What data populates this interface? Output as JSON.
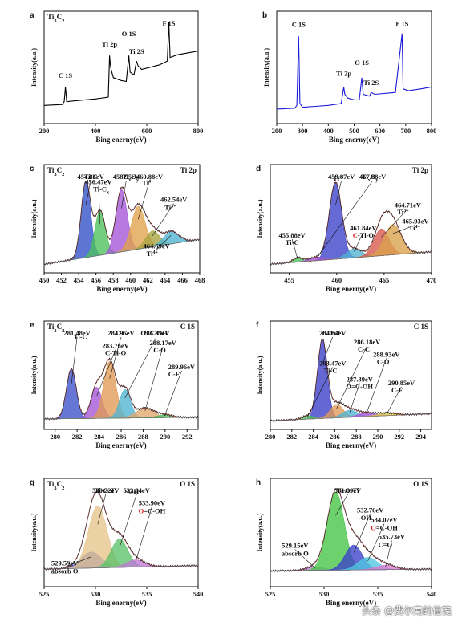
{
  "watermark": "头条 @费尔南的信笺",
  "chart_data": [
    {
      "id": "a",
      "type": "line",
      "letter": "a",
      "title": "Ti3C2",
      "xlabel": "Bing enerny(eV)",
      "ylabel": "Intensity(a.u.)",
      "xlim": [
        200,
        800
      ],
      "ylim": [
        0,
        100
      ],
      "xticks": [
        200,
        400,
        600,
        800
      ],
      "series": [
        {
          "color": "#000000",
          "points": [
            [
              200,
              10
            ],
            [
              270,
              11
            ],
            [
              278,
              14
            ],
            [
              283,
              30
            ],
            [
              288,
              14
            ],
            [
              320,
              15
            ],
            [
              400,
              17
            ],
            [
              450,
              19
            ],
            [
              455,
              64
            ],
            [
              458,
              54
            ],
            [
              462,
              48
            ],
            [
              470,
              40
            ],
            [
              500,
              37
            ],
            [
              520,
              36
            ],
            [
              530,
              64
            ],
            [
              535,
              46
            ],
            [
              550,
              43
            ],
            [
              560,
              58
            ],
            [
              566,
              53
            ],
            [
              580,
              49
            ],
            [
              650,
              54
            ],
            [
              680,
              58
            ],
            [
              686,
              100
            ],
            [
              691,
              62
            ],
            [
              720,
              65
            ],
            [
              760,
              67
            ],
            [
              800,
              69
            ]
          ]
        }
      ],
      "labels": [
        {
          "text": "C 1S",
          "x": 283,
          "y": 40
        },
        {
          "text": "Ti 2p",
          "x": 455,
          "y": 74
        },
        {
          "text": "O 1S",
          "x": 530,
          "y": 85
        },
        {
          "text": "Ti 2S",
          "x": 560,
          "y": 66
        },
        {
          "text": "F 1S",
          "x": 686,
          "y": 110
        }
      ]
    },
    {
      "id": "b",
      "type": "line",
      "letter": "b",
      "title": "",
      "xlabel": "Bing enerny(eV)",
      "ylabel": "Intensity(a.u.)",
      "xlim": [
        200,
        800
      ],
      "ylim": [
        0,
        100
      ],
      "xticks": [
        200,
        300,
        400,
        500,
        600,
        700,
        800
      ],
      "series": [
        {
          "color": "#1a1ad9",
          "points": [
            [
              200,
              6
            ],
            [
              270,
              7
            ],
            [
              278,
              10
            ],
            [
              285,
              85
            ],
            [
              290,
              12
            ],
            [
              300,
              8
            ],
            [
              350,
              9
            ],
            [
              400,
              10
            ],
            [
              450,
              12
            ],
            [
              460,
              30
            ],
            [
              464,
              22
            ],
            [
              475,
              18
            ],
            [
              500,
              16
            ],
            [
              520,
              16
            ],
            [
              530,
              40
            ],
            [
              535,
              22
            ],
            [
              560,
              20
            ],
            [
              566,
              24
            ],
            [
              580,
              22
            ],
            [
              660,
              24
            ],
            [
              686,
              88
            ],
            [
              690,
              28
            ],
            [
              710,
              26
            ],
            [
              760,
              28
            ],
            [
              800,
              30
            ]
          ]
        }
      ],
      "labels": [
        {
          "text": "C 1S",
          "x": 285,
          "y": 95
        },
        {
          "text": "Ti 2p",
          "x": 460,
          "y": 42
        },
        {
          "text": "O 1S",
          "x": 530,
          "y": 54
        },
        {
          "text": "Ti 2S",
          "x": 566,
          "y": 32
        },
        {
          "text": "F 1S",
          "x": 686,
          "y": 96
        }
      ]
    },
    {
      "id": "c",
      "type": "area",
      "letter": "c",
      "title": "Ti3C2",
      "subtitle": "Ti 2p",
      "xlabel": "Bing enerny(eV)",
      "ylabel": "Intensity(a.u.)",
      "xlim": [
        450,
        468
      ],
      "ylim": [
        0,
        100
      ],
      "xticks": [
        450,
        452,
        454,
        456,
        458,
        460,
        462,
        464,
        466,
        468
      ],
      "baseline": [
        [
          450,
          0
        ],
        [
          468,
          28
        ]
      ],
      "peaks": [
        {
          "center": 454.83,
          "amp": 85,
          "width": 0.55,
          "color": "#3050c8"
        },
        {
          "center": 456.47,
          "amp": 50,
          "width": 0.6,
          "color": "#4cc25a"
        },
        {
          "center": 458.95,
          "amp": 70,
          "width": 0.65,
          "color": "#a455d6"
        },
        {
          "center": 460.88,
          "amp": 48,
          "width": 0.8,
          "color": "#e0a24a"
        },
        {
          "center": 462.54,
          "amp": 18,
          "width": 0.8,
          "color": "#a8a440"
        },
        {
          "center": 464.69,
          "amp": 14,
          "width": 0.9,
          "color": "#4fb3d1"
        }
      ],
      "labels": [
        {
          "text": "454.83eV",
          "x": 455.4,
          "y": 108,
          "peak": 454.83
        },
        {
          "text": "Ti-C",
          "x": 455.4,
          "y": 100
        },
        {
          "text": "456.47eV",
          "x": 456.3,
          "y": 90,
          "peak": 456.47
        },
        {
          "text": "Ti-Cx",
          "x": 456.6,
          "y": 82
        },
        {
          "text": "458.95eV",
          "x": 459.5,
          "y": 108,
          "peak": 458.95
        },
        {
          "text": "TixOy",
          "x": 460.0,
          "y": 100
        },
        {
          "text": "460.88eV",
          "x": 462.2,
          "y": 97,
          "peak": 460.88
        },
        {
          "text": "Ti4+",
          "x": 462.0,
          "y": 89
        },
        {
          "text": "462.54eV",
          "x": 465.0,
          "y": 70,
          "peak": 462.54
        },
        {
          "text": "Ti3+",
          "x": 464.6,
          "y": 61
        },
        {
          "text": "464.69eV",
          "x": 463.0,
          "y": 18,
          "peak": 464.69
        },
        {
          "text": "Ti4+",
          "x": 462.5,
          "y": 9
        }
      ]
    },
    {
      "id": "d",
      "type": "area",
      "letter": "d",
      "title": "",
      "subtitle": "Ti 2p",
      "xlabel": "Bing enerny(eV)",
      "ylabel": "Intensity(a.u.)",
      "xlim": [
        453,
        470
      ],
      "ylim": [
        0,
        100
      ],
      "xticks": [
        455,
        460,
        465,
        470
      ],
      "baseline": [
        [
          453,
          0
        ],
        [
          470,
          14
        ]
      ],
      "peaks": [
        {
          "center": 455.88,
          "amp": 5,
          "width": 0.5,
          "color": "#4cc25a"
        },
        {
          "center": 459.87,
          "amp": 86,
          "width": 0.65,
          "color": "#3a40c8"
        },
        {
          "center": 457.88,
          "amp": 4,
          "width": 0.8,
          "color": "#a455d6"
        },
        {
          "center": 461.84,
          "amp": 10,
          "width": 0.8,
          "color": "#4fb3d1"
        },
        {
          "center": 464.71,
          "amp": 30,
          "width": 0.8,
          "color": "#d9574a"
        },
        {
          "center": 465.93,
          "amp": 34,
          "width": 0.9,
          "color": "#d9a24a"
        }
      ],
      "labels": [
        {
          "text": "459.87eV",
          "x": 460.5,
          "y": 104,
          "peak": 459.87
        },
        {
          "text": "Ti4+",
          "x": 460.2,
          "y": 94
        },
        {
          "text": "457.88eV",
          "x": 463.8,
          "y": 104,
          "peak": 457.88
        },
        {
          "text": "TixOy",
          "x": 463.5,
          "y": 96
        },
        {
          "text": "455.88eV",
          "x": 455.3,
          "y": 30,
          "peak": 455.88
        },
        {
          "text": "Ti-C",
          "x": 455.3,
          "y": 22
        },
        {
          "text": "461.84eV",
          "x": 462.8,
          "y": 38,
          "peak": 461.84
        },
        {
          "text": "C-Ti-O",
          "x": 462.8,
          "y": 30,
          "red": "C"
        },
        {
          "text": "464.71eV",
          "x": 467.5,
          "y": 64,
          "peak": 464.71
        },
        {
          "text": "Ti3+",
          "x": 467.0,
          "y": 56
        },
        {
          "text": "465.93eV",
          "x": 468.5,
          "y": 46,
          "peak": 465.93
        },
        {
          "text": "Ti4+",
          "x": 468.2,
          "y": 38
        }
      ]
    },
    {
      "id": "e",
      "type": "area",
      "letter": "e",
      "title": "Ti3C2",
      "subtitle": "C 1S",
      "xlabel": "Bing enerny(eV)",
      "ylabel": "Intensity(a.u.)",
      "xlim": [
        279,
        293
      ],
      "ylim": [
        0,
        100
      ],
      "xticks": [
        280,
        282,
        284,
        286,
        288,
        290,
        292
      ],
      "baseline": [
        [
          279,
          2
        ],
        [
          293,
          4
        ]
      ],
      "peaks": [
        {
          "center": 281.48,
          "amp": 56,
          "width": 0.45,
          "color": "#3a50c8"
        },
        {
          "center": 283.76,
          "amp": 35,
          "width": 0.5,
          "color": "#a455d6"
        },
        {
          "center": 284.96,
          "amp": 64,
          "width": 0.55,
          "color": "#e09a55"
        },
        {
          "center": 286.35,
          "amp": 32,
          "width": 0.5,
          "color": "#4fb3d1"
        },
        {
          "center": 288.17,
          "amp": 11,
          "width": 0.8,
          "color": "#e2a870"
        },
        {
          "center": 289.96,
          "amp": 3,
          "width": 0.7,
          "color": "#4cc25a"
        }
      ],
      "labels": [
        {
          "text": "281.48eV",
          "x": 282.0,
          "y": 100,
          "peak": 281.48
        },
        {
          "text": "Ti-C",
          "x": 282.3,
          "y": 92
        },
        {
          "text": "284.96eV",
          "x": 286.0,
          "y": 104,
          "peak": 284.96
        },
        {
          "text": "C-C",
          "x": 286.0,
          "y": 96
        },
        {
          "text": "283.76eV",
          "x": 285.5,
          "y": 82,
          "peak": 283.76
        },
        {
          "text": "C-Ti-O",
          "x": 285.5,
          "y": 74
        },
        {
          "text": "286.35eV",
          "x": 289.2,
          "y": 104,
          "peak": 286.35
        },
        {
          "text": "O=C-OH",
          "x": 289.0,
          "y": 96
        },
        {
          "text": "288.17eV",
          "x": 289.8,
          "y": 85,
          "peak": 288.17
        },
        {
          "text": "C-O",
          "x": 289.5,
          "y": 77
        },
        {
          "text": "289.96eV",
          "x": 291.5,
          "y": 58,
          "peak": 289.96
        },
        {
          "text": "C-F",
          "x": 290.8,
          "y": 50
        }
      ]
    },
    {
      "id": "f",
      "type": "area",
      "letter": "f",
      "title": "",
      "subtitle": "C 1S",
      "xlabel": "Bing enerny(eV)",
      "ylabel": "Intensity(a.u.)",
      "xlim": [
        280,
        295
      ],
      "ylim": [
        0,
        100
      ],
      "xticks": [
        280,
        282,
        284,
        286,
        288,
        290,
        292,
        294
      ],
      "baseline": [
        [
          280,
          0
        ],
        [
          295,
          8
        ]
      ],
      "peaks": [
        {
          "center": 284.84,
          "amp": 88,
          "width": 0.45,
          "color": "#3a3ec8"
        },
        {
          "center": 283.47,
          "amp": 4,
          "width": 0.5,
          "color": "#4cc25a"
        },
        {
          "center": 286.18,
          "amp": 15,
          "width": 0.6,
          "color": "#e09a55"
        },
        {
          "center": 287.39,
          "amp": 8,
          "width": 0.7,
          "color": "#4fb3d1"
        },
        {
          "center": 288.93,
          "amp": 4,
          "width": 0.8,
          "color": "#a455d6"
        },
        {
          "center": 290.85,
          "amp": 3,
          "width": 0.8,
          "color": "#d9c24a"
        }
      ],
      "labels": [
        {
          "text": "284.84eV",
          "x": 285.8,
          "y": 104,
          "peak": 284.84
        },
        {
          "text": "C-Ti-O",
          "x": 285.8,
          "y": 96
        },
        {
          "text": "286.18eV",
          "x": 289.0,
          "y": 86,
          "peak": 286.18
        },
        {
          "text": "C-C",
          "x": 288.7,
          "y": 78
        },
        {
          "text": "288.93eV",
          "x": 290.8,
          "y": 72,
          "peak": 288.93
        },
        {
          "text": "C-O",
          "x": 290.5,
          "y": 64
        },
        {
          "text": "283.47eV",
          "x": 285.8,
          "y": 62,
          "peak": 283.47
        },
        {
          "text": "Ti-C",
          "x": 285.6,
          "y": 54
        },
        {
          "text": "287.39eV",
          "x": 288.3,
          "y": 44,
          "peak": 287.39
        },
        {
          "text": "O=C-OH",
          "x": 288.3,
          "y": 36
        },
        {
          "text": "290.85eV",
          "x": 292.2,
          "y": 40,
          "peak": 290.85
        },
        {
          "text": "C-F",
          "x": 291.8,
          "y": 32
        }
      ]
    },
    {
      "id": "g",
      "type": "area",
      "letter": "g",
      "title": "Ti3C2",
      "subtitle": "O 1S",
      "xlabel": "Bing enerny(eV)",
      "ylabel": "Intensity(a.u.)",
      "xlim": [
        525,
        540
      ],
      "ylim": [
        0,
        100
      ],
      "xticks": [
        525,
        530,
        535,
        540
      ],
      "baseline": [
        [
          525,
          10
        ],
        [
          540,
          14
        ]
      ],
      "peaks": [
        {
          "center": 529.59,
          "amp": 18,
          "width": 1.0,
          "color": "#4a5ad0"
        },
        {
          "center": 530.22,
          "amp": 70,
          "width": 0.9,
          "color": "#e6c48a"
        },
        {
          "center": 532.34,
          "amp": 32,
          "width": 0.8,
          "color": "#5cc26a"
        },
        {
          "center": 533.9,
          "amp": 8,
          "width": 0.9,
          "color": "#c07ad6"
        }
      ],
      "labels": [
        {
          "text": "530.22eV",
          "x": 531.0,
          "y": 108,
          "peak": 530.22
        },
        {
          "text": "Ti-O-Ti",
          "x": 531.0,
          "y": 99
        },
        {
          "text": "532.34eV",
          "x": 534.0,
          "y": 104,
          "peak": 532.34
        },
        {
          "text": "-OH",
          "x": 533.6,
          "y": 95
        },
        {
          "text": "533.90eV",
          "x": 535.5,
          "y": 82,
          "peak": 533.9
        },
        {
          "text": "O=C-OH",
          "x": 535.5,
          "y": 73,
          "red": "O"
        },
        {
          "text": "529.59eV",
          "x": 527.0,
          "y": 14,
          "peak": 529.59
        },
        {
          "text": "absorb O",
          "x": 527.0,
          "y": 5
        }
      ]
    },
    {
      "id": "h",
      "type": "area",
      "letter": "h",
      "title": "",
      "subtitle": "O 1S",
      "xlabel": "Bing enerny(eV)",
      "ylabel": "Intensity(a.u.)",
      "xlim": [
        525,
        540
      ],
      "ylim": [
        0,
        100
      ],
      "xticks": [
        525,
        530,
        535,
        540
      ],
      "baseline": [
        [
          525,
          8
        ],
        [
          540,
          10
        ]
      ],
      "peaks": [
        {
          "center": 529.15,
          "amp": 4,
          "width": 0.8,
          "color": "#c07ad6"
        },
        {
          "center": 531.09,
          "amp": 88,
          "width": 0.8,
          "color": "#44c444"
        },
        {
          "center": 532.76,
          "amp": 28,
          "width": 0.8,
          "color": "#3a40c8"
        },
        {
          "center": 534.07,
          "amp": 14,
          "width": 0.9,
          "color": "#4fc6e0"
        },
        {
          "center": 535.73,
          "amp": 5,
          "width": 0.9,
          "color": "#e07ad0"
        }
      ],
      "labels": [
        {
          "text": "531.09eV",
          "x": 532.2,
          "y": 110,
          "peak": 531.09
        },
        {
          "text": "Ti-O-Ti",
          "x": 532.2,
          "y": 100
        },
        {
          "text": "532.76eV",
          "x": 534.3,
          "y": 74,
          "peak": 532.76
        },
        {
          "text": "-OH",
          "x": 533.8,
          "y": 65
        },
        {
          "text": "534.07eV",
          "x": 535.6,
          "y": 63,
          "peak": 534.07
        },
        {
          "text": "O=C-OH",
          "x": 535.6,
          "y": 54,
          "red": "O"
        },
        {
          "text": "535.73eV",
          "x": 536.3,
          "y": 44,
          "peak": 535.73
        },
        {
          "text": "C=O",
          "x": 535.7,
          "y": 35
        },
        {
          "text": "529.15eV",
          "x": 527.3,
          "y": 34,
          "peak": 529.15
        },
        {
          "text": "absorb O",
          "x": 527.3,
          "y": 25
        }
      ]
    }
  ]
}
